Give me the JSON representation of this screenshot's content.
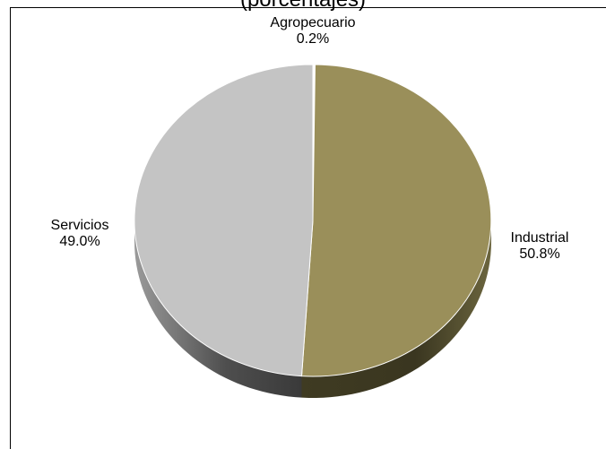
{
  "chart_data": {
    "type": "pie",
    "title": "(porcentajes)",
    "slices": [
      {
        "label": "Agropecuario",
        "value": 0.2,
        "value_text": "0.2%",
        "color": "#ffffff"
      },
      {
        "label": "Industrial",
        "value": 50.8,
        "value_text": "50.8%",
        "color": "#9a8f5a"
      },
      {
        "label": "Servicios",
        "value": 49.0,
        "value_text": "49.0%",
        "color": "#c4c4c4"
      }
    ],
    "style": "3d"
  }
}
